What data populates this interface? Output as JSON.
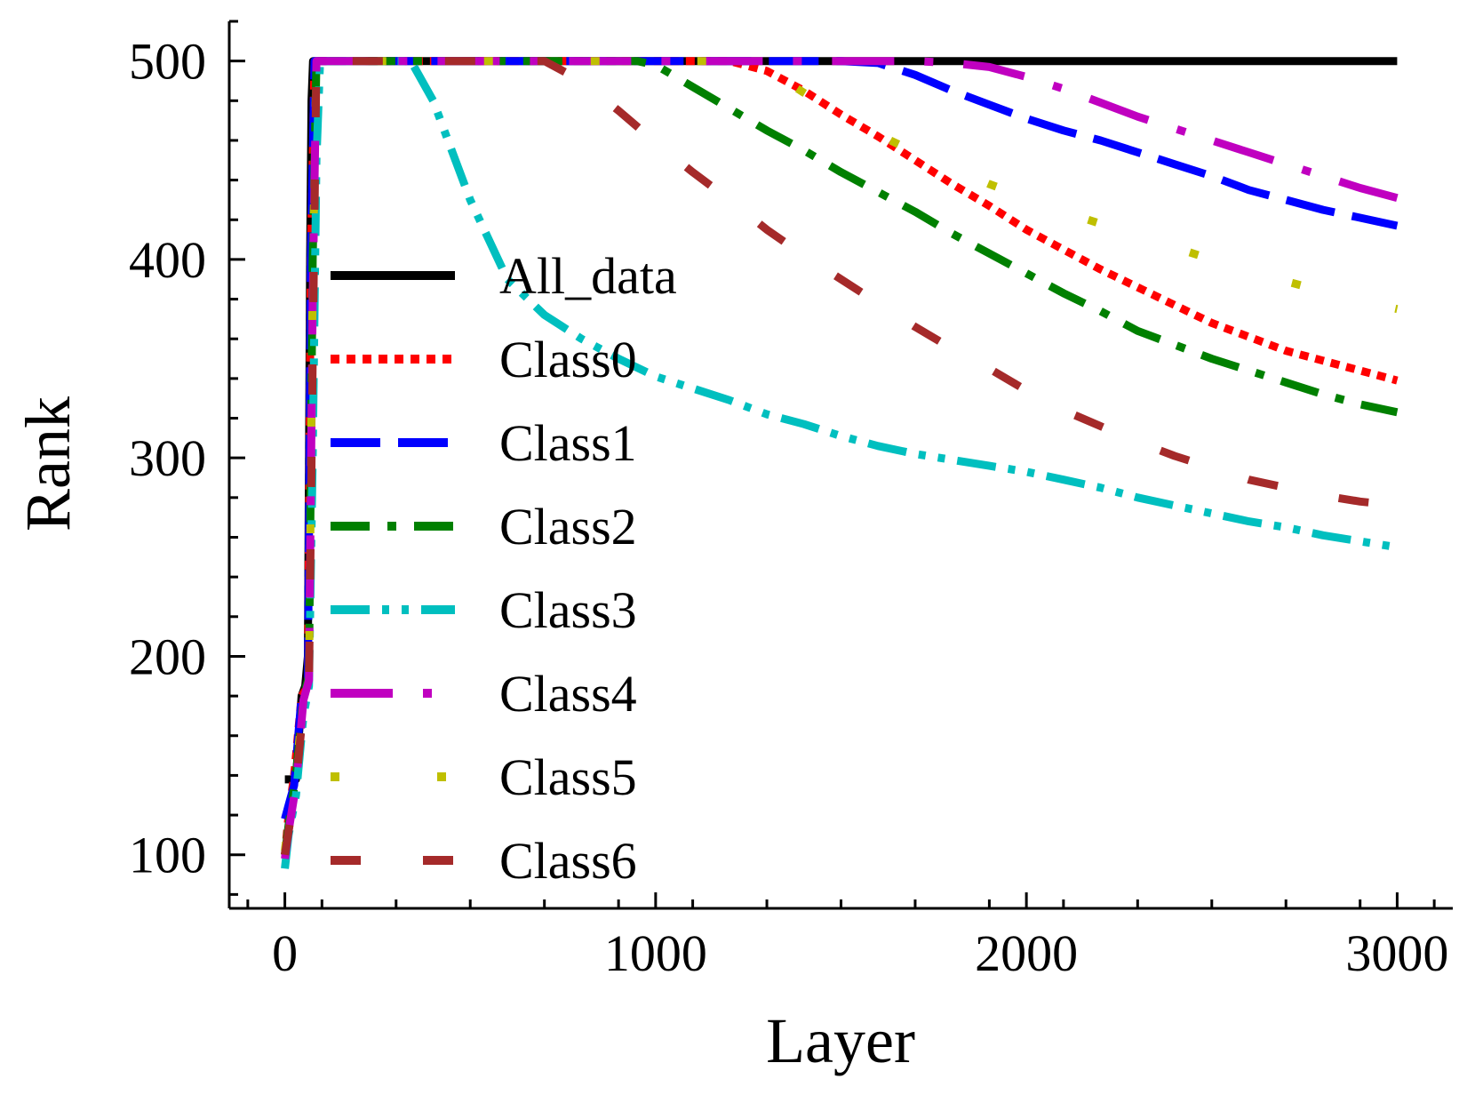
{
  "chart_data": {
    "type": "line",
    "title": "",
    "xlabel": "Layer",
    "ylabel": "Rank",
    "xlim": [
      -150,
      3150
    ],
    "ylim": [
      73,
      520
    ],
    "xticks": [
      0,
      1000,
      2000,
      3000
    ],
    "yticks": [
      100,
      200,
      300,
      400,
      500
    ],
    "xtick_labels": [
      "0",
      "1000",
      "2000",
      "3000"
    ],
    "ytick_labels": [
      "100",
      "200",
      "300",
      "400",
      "500"
    ],
    "legend_position": "center-left",
    "grid": false,
    "series": [
      {
        "name": "All_data",
        "color": "#000000",
        "style": "solid",
        "x": [
          0,
          15,
          30,
          45,
          55,
          62,
          68,
          72,
          76,
          80,
          3000
        ],
        "y": [
          138,
          138,
          138,
          180,
          185,
          200,
          400,
          480,
          500,
          500,
          500
        ]
      },
      {
        "name": "Class0",
        "color": "#ff0000",
        "style": "dot",
        "x": [
          0,
          10,
          25,
          45,
          62,
          70,
          80,
          1100,
          1200,
          1300,
          1400,
          1500,
          1600,
          1700,
          1800,
          1900,
          2000,
          2100,
          2200,
          2300,
          2400,
          2500,
          2600,
          2700,
          2800,
          2900,
          3000
        ],
        "y": [
          100,
          120,
          140,
          180,
          185,
          400,
          500,
          500,
          500,
          495,
          485,
          473,
          462,
          450,
          438,
          427,
          415,
          405,
          395,
          386,
          377,
          368,
          361,
          354,
          349,
          344,
          339
        ]
      },
      {
        "name": "Class1",
        "color": "#0000ff",
        "style": "dash",
        "x": [
          0,
          10,
          25,
          45,
          62,
          70,
          80,
          1500,
          1600,
          1700,
          1800,
          1900,
          2000,
          2100,
          2200,
          2300,
          2400,
          2500,
          2600,
          2700,
          2800,
          2900,
          3000
        ],
        "y": [
          118,
          125,
          135,
          180,
          185,
          400,
          500,
          500,
          499,
          493,
          485,
          478,
          471,
          465,
          460,
          454,
          448,
          442,
          435,
          430,
          425,
          421,
          417
        ]
      },
      {
        "name": "Class2",
        "color": "#008000",
        "style": "dash-dot",
        "x": [
          0,
          10,
          30,
          50,
          65,
          75,
          85,
          950,
          1000,
          1100,
          1200,
          1300,
          1400,
          1500,
          1600,
          1700,
          1800,
          1900,
          2000,
          2100,
          2200,
          2300,
          2400,
          2500,
          2600,
          2700,
          2800,
          2900,
          3000
        ],
        "y": [
          100,
          115,
          140,
          180,
          190,
          400,
          500,
          500,
          498,
          487,
          476,
          465,
          455,
          444,
          434,
          424,
          413,
          403,
          393,
          383,
          374,
          364,
          357,
          350,
          344,
          338,
          332,
          327,
          323
        ]
      },
      {
        "name": "Class3",
        "color": "#00bfbf",
        "style": "dash-dot-dot",
        "x": [
          0,
          10,
          30,
          50,
          65,
          75,
          85,
          95,
          340,
          400,
          500,
          600,
          700,
          800,
          900,
          1000,
          1100,
          1200,
          1300,
          1400,
          1500,
          1600,
          1700,
          1800,
          1900,
          2000,
          2100,
          2200,
          2300,
          2400,
          2500,
          2600,
          2700,
          2800,
          2900,
          3000
        ],
        "y": [
          93,
          110,
          130,
          170,
          185,
          300,
          450,
          500,
          500,
          480,
          430,
          390,
          372,
          360,
          350,
          341,
          335,
          329,
          322,
          317,
          311,
          306,
          302,
          299,
          296,
          293,
          289,
          285,
          280,
          276,
          272,
          268,
          265,
          261,
          258,
          255
        ]
      },
      {
        "name": "Class4",
        "color": "#c000c0",
        "style": "long-dash-dot",
        "x": [
          0,
          10,
          30,
          50,
          65,
          75,
          85,
          1700,
          1800,
          1900,
          2000,
          2100,
          2200,
          2300,
          2400,
          2500,
          2600,
          2700,
          2800,
          2900,
          3000
        ],
        "y": [
          98,
          112,
          135,
          178,
          188,
          380,
          500,
          500,
          499,
          497,
          492,
          486,
          479,
          472,
          466,
          460,
          454,
          448,
          442,
          436,
          431
        ]
      },
      {
        "name": "Class5",
        "color": "#bfbf00",
        "style": "sparse-dot",
        "x": [
          0,
          10,
          30,
          50,
          65,
          75,
          85,
          1200,
          1300,
          1400,
          1500,
          1600,
          1700,
          1800,
          1900,
          2000,
          2100,
          2200,
          2300,
          2400,
          2500,
          2600,
          2700,
          2800,
          2900,
          3000
        ],
        "y": [
          102,
          118,
          140,
          180,
          186,
          390,
          500,
          500,
          496,
          484,
          473,
          463,
          454,
          446,
          438,
          431,
          424,
          418,
          412,
          406,
          400,
          395,
          389,
          384,
          379,
          375
        ]
      },
      {
        "name": "Class6",
        "color": "#a52a2a",
        "style": "long-dash",
        "x": [
          0,
          10,
          30,
          50,
          65,
          75,
          85,
          700,
          800,
          900,
          1000,
          1100,
          1200,
          1300,
          1400,
          1500,
          1600,
          1700,
          1800,
          1900,
          2000,
          2100,
          2200,
          2300,
          2400,
          2500,
          2600,
          2700,
          2800,
          2900,
          3000
        ],
        "y": [
          100,
          112,
          135,
          175,
          185,
          350,
          500,
          500,
          490,
          475,
          459,
          444,
          430,
          415,
          402,
          390,
          378,
          366,
          355,
          345,
          334,
          324,
          316,
          308,
          301,
          295,
          289,
          285,
          281,
          278,
          276
        ]
      }
    ]
  }
}
